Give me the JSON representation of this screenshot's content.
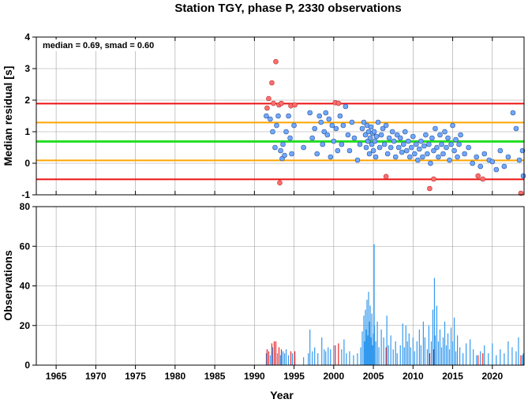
{
  "title": "Station TGY, phase P, 2330 observations",
  "colors": {
    "median_line": "#22dd22",
    "smad_line": "#ffa500",
    "outlier_line": "#ee1111",
    "normal_point": "#6fa8ff",
    "outlier_point": "#ff6e6e",
    "bar_normal": "#3399ee",
    "bar_outlier": "#ee2222"
  },
  "chart_data": [
    {
      "type": "scatter",
      "name": "residuals",
      "ylabel": "Median residual [s]",
      "annotation": "median = 0.69, smad = 0.60",
      "xlim": [
        1962.5,
        2024
      ],
      "ylim": [
        -1,
        4
      ],
      "yticks": [
        -1,
        0,
        1,
        2,
        3,
        4
      ],
      "xticks": [
        1965,
        1970,
        1975,
        1980,
        1985,
        1990,
        1995,
        2000,
        2005,
        2010,
        2015,
        2020
      ],
      "grid": true,
      "hlines": [
        {
          "value": 0.69,
          "kind": "median"
        },
        {
          "value": 0.09,
          "kind": "smad"
        },
        {
          "value": 1.29,
          "kind": "smad"
        },
        {
          "value": -0.51,
          "kind": "outlier"
        },
        {
          "value": 1.89,
          "kind": "outlier"
        }
      ],
      "outliers": [
        [
          1991.6,
          1.75
        ],
        [
          1991.8,
          2.05
        ],
        [
          1992.2,
          2.55
        ],
        [
          1992.7,
          3.22
        ],
        [
          1993.1,
          1.85
        ],
        [
          1993.4,
          1.9
        ],
        [
          1993.2,
          -0.62
        ],
        [
          1992.4,
          1.9
        ],
        [
          1994.6,
          1.82
        ],
        [
          1995.1,
          1.85
        ],
        [
          2000.2,
          1.92
        ],
        [
          2000.6,
          1.9
        ],
        [
          2006.6,
          -0.42
        ],
        [
          2012.1,
          -0.8
        ],
        [
          2012.6,
          -0.5
        ],
        [
          2018.2,
          -0.4
        ],
        [
          2018.8,
          -0.5
        ],
        [
          2023.6,
          -0.95
        ]
      ],
      "points": [
        [
          1991.5,
          1.5
        ],
        [
          1992.0,
          1.4
        ],
        [
          1992.3,
          1.0
        ],
        [
          1992.6,
          0.5
        ],
        [
          1992.8,
          1.2
        ],
        [
          1993.0,
          1.5
        ],
        [
          1993.3,
          0.4
        ],
        [
          1993.5,
          0.15
        ],
        [
          1993.6,
          0.6
        ],
        [
          1993.8,
          0.25
        ],
        [
          1994.0,
          1.0
        ],
        [
          1994.3,
          1.5
        ],
        [
          1994.5,
          0.8
        ],
        [
          1994.7,
          0.3
        ],
        [
          1995.0,
          1.2
        ],
        [
          1996.2,
          0.5
        ],
        [
          1997.0,
          1.6
        ],
        [
          1997.3,
          0.8
        ],
        [
          1997.6,
          1.1
        ],
        [
          1997.9,
          0.3
        ],
        [
          1998.2,
          1.5
        ],
        [
          1998.4,
          1.3
        ],
        [
          1998.6,
          0.6
        ],
        [
          1998.8,
          1.0
        ],
        [
          1999.0,
          1.6
        ],
        [
          1999.2,
          0.9
        ],
        [
          1999.4,
          1.4
        ],
        [
          1999.6,
          0.2
        ],
        [
          1999.8,
          1.2
        ],
        [
          2000.0,
          0.7
        ],
        [
          2000.3,
          1.1
        ],
        [
          2000.5,
          0.4
        ],
        [
          2000.8,
          1.5
        ],
        [
          2001.0,
          0.6
        ],
        [
          2001.2,
          1.2
        ],
        [
          2001.5,
          1.8
        ],
        [
          2001.8,
          0.9
        ],
        [
          2002.0,
          0.4
        ],
        [
          2002.3,
          1.3
        ],
        [
          2002.6,
          0.8
        ],
        [
          2003.0,
          0.1
        ],
        [
          2003.3,
          0.6
        ],
        [
          2003.6,
          1.1
        ],
        [
          2003.8,
          1.3
        ],
        [
          2004.0,
          0.9
        ],
        [
          2004.1,
          0.5
        ],
        [
          2004.2,
          1.2
        ],
        [
          2004.3,
          0.7
        ],
        [
          2004.4,
          1.0
        ],
        [
          2004.5,
          0.3
        ],
        [
          2004.6,
          0.8
        ],
        [
          2004.7,
          1.15
        ],
        [
          2004.8,
          0.6
        ],
        [
          2004.9,
          0.95
        ],
        [
          2005.0,
          0.4
        ],
        [
          2005.1,
          1.0
        ],
        [
          2005.2,
          0.7
        ],
        [
          2005.3,
          0.2
        ],
        [
          2005.4,
          0.85
        ],
        [
          2005.6,
          1.3
        ],
        [
          2005.8,
          0.5
        ],
        [
          2006.0,
          0.9
        ],
        [
          2006.2,
          1.1
        ],
        [
          2006.4,
          0.6
        ],
        [
          2006.6,
          1.2
        ],
        [
          2006.8,
          0.3
        ],
        [
          2007.0,
          0.8
        ],
        [
          2007.2,
          0.5
        ],
        [
          2007.4,
          1.0
        ],
        [
          2007.6,
          0.7
        ],
        [
          2007.8,
          0.2
        ],
        [
          2008.0,
          0.9
        ],
        [
          2008.2,
          0.5
        ],
        [
          2008.4,
          0.8
        ],
        [
          2008.6,
          0.35
        ],
        [
          2008.8,
          0.6
        ],
        [
          2009.0,
          1.0
        ],
        [
          2009.2,
          0.4
        ],
        [
          2009.4,
          0.7
        ],
        [
          2009.6,
          0.2
        ],
        [
          2009.8,
          0.5
        ],
        [
          2010.0,
          0.85
        ],
        [
          2010.2,
          0.3
        ],
        [
          2010.4,
          0.6
        ],
        [
          2010.6,
          0.1
        ],
        [
          2010.8,
          0.45
        ],
        [
          2011.0,
          0.7
        ],
        [
          2011.2,
          0.2
        ],
        [
          2011.4,
          0.55
        ],
        [
          2011.6,
          0.9
        ],
        [
          2011.8,
          0.3
        ],
        [
          2012.0,
          0.6
        ],
        [
          2012.2,
          0.0
        ],
        [
          2012.4,
          0.8
        ],
        [
          2012.6,
          0.4
        ],
        [
          2012.8,
          1.1
        ],
        [
          2013.0,
          0.5
        ],
        [
          2013.2,
          0.2
        ],
        [
          2013.4,
          0.9
        ],
        [
          2013.6,
          0.6
        ],
        [
          2013.8,
          0.3
        ],
        [
          2014.0,
          1.0
        ],
        [
          2014.2,
          0.5
        ],
        [
          2014.4,
          0.8
        ],
        [
          2014.6,
          0.1
        ],
        [
          2014.8,
          0.6
        ],
        [
          2015.0,
          1.2
        ],
        [
          2015.2,
          0.4
        ],
        [
          2015.4,
          0.75
        ],
        [
          2015.6,
          0.2
        ],
        [
          2015.8,
          0.6
        ],
        [
          2016.0,
          0.9
        ],
        [
          2016.5,
          0.3
        ],
        [
          2017.0,
          0.5
        ],
        [
          2017.5,
          0.0
        ],
        [
          2018.0,
          0.2
        ],
        [
          2018.5,
          -0.1
        ],
        [
          2019.0,
          0.3
        ],
        [
          2019.6,
          0.1
        ],
        [
          2020.0,
          0.05
        ],
        [
          2020.5,
          -0.2
        ],
        [
          2021.0,
          0.4
        ],
        [
          2021.5,
          -0.1
        ],
        [
          2022.0,
          0.2
        ],
        [
          2022.6,
          1.6
        ],
        [
          2023.0,
          1.1
        ],
        [
          2023.4,
          0.1
        ],
        [
          2023.8,
          0.4
        ],
        [
          2024.0,
          -0.4
        ]
      ]
    },
    {
      "type": "bar",
      "name": "observations",
      "ylabel": "Observations",
      "xlabel": "Year",
      "xlim": [
        1962.5,
        2024
      ],
      "ylim": [
        0,
        80
      ],
      "yticks": [
        0,
        20,
        40,
        60,
        80
      ],
      "xticks": [
        1965,
        1970,
        1975,
        1980,
        1985,
        1990,
        1995,
        2000,
        2005,
        2010,
        2015,
        2020
      ],
      "grid": true,
      "outlier_bars": [
        [
          1991.6,
          8
        ],
        [
          1991.8,
          7
        ],
        [
          1992.2,
          11
        ],
        [
          1992.5,
          12
        ],
        [
          1992.7,
          12
        ],
        [
          1993.1,
          9
        ],
        [
          1993.4,
          8
        ],
        [
          1994.6,
          7
        ],
        [
          1995.1,
          7
        ],
        [
          2000.2,
          10
        ],
        [
          2000.6,
          11
        ],
        [
          2006.6,
          9
        ],
        [
          2012.1,
          6
        ],
        [
          2012.6,
          8
        ],
        [
          2018.2,
          5
        ],
        [
          2018.8,
          6
        ],
        [
          2023.6,
          5
        ]
      ],
      "bars": [
        [
          1991.5,
          6
        ],
        [
          1992.0,
          5
        ],
        [
          1992.3,
          9
        ],
        [
          1992.9,
          6
        ],
        [
          1993.3,
          5
        ],
        [
          1993.6,
          7
        ],
        [
          1993.8,
          6
        ],
        [
          1994.0,
          8
        ],
        [
          1994.3,
          5
        ],
        [
          1994.8,
          6
        ],
        [
          1996.2,
          4
        ],
        [
          1996.8,
          6
        ],
        [
          1997.0,
          18
        ],
        [
          1997.3,
          7
        ],
        [
          1997.6,
          9
        ],
        [
          1998.0,
          6
        ],
        [
          1998.5,
          14
        ],
        [
          1998.8,
          8
        ],
        [
          1999.0,
          7
        ],
        [
          1999.3,
          9
        ],
        [
          1999.6,
          8
        ],
        [
          2000.0,
          10
        ],
        [
          2001.0,
          8
        ],
        [
          2001.3,
          13
        ],
        [
          2001.6,
          6
        ],
        [
          2002.0,
          7
        ],
        [
          2002.5,
          5
        ],
        [
          2003.0,
          6
        ],
        [
          2003.4,
          9
        ],
        [
          2003.6,
          17
        ],
        [
          2003.8,
          25
        ],
        [
          2003.9,
          12
        ],
        [
          2004.0,
          28
        ],
        [
          2004.1,
          18
        ],
        [
          2004.2,
          33
        ],
        [
          2004.3,
          15
        ],
        [
          2004.4,
          37
        ],
        [
          2004.5,
          22
        ],
        [
          2004.6,
          30
        ],
        [
          2004.7,
          14
        ],
        [
          2004.8,
          26
        ],
        [
          2004.9,
          10
        ],
        [
          2005.0,
          16
        ],
        [
          2005.1,
          61
        ],
        [
          2005.15,
          20
        ],
        [
          2005.3,
          12
        ],
        [
          2005.5,
          22
        ],
        [
          2005.7,
          9
        ],
        [
          2006.0,
          18
        ],
        [
          2006.3,
          14
        ],
        [
          2006.7,
          25
        ],
        [
          2006.9,
          10
        ],
        [
          2007.2,
          15
        ],
        [
          2007.5,
          8
        ],
        [
          2007.8,
          12
        ],
        [
          2008.0,
          6
        ],
        [
          2008.4,
          10
        ],
        [
          2008.7,
          21
        ],
        [
          2008.9,
          9
        ],
        [
          2009.1,
          20
        ],
        [
          2009.3,
          12
        ],
        [
          2009.5,
          16
        ],
        [
          2009.7,
          9
        ],
        [
          2010.0,
          14
        ],
        [
          2010.2,
          7
        ],
        [
          2010.5,
          12
        ],
        [
          2010.8,
          18
        ],
        [
          2011.0,
          10
        ],
        [
          2011.3,
          22
        ],
        [
          2011.5,
          14
        ],
        [
          2011.8,
          8
        ],
        [
          2012.0,
          20
        ],
        [
          2012.3,
          12
        ],
        [
          2012.5,
          28
        ],
        [
          2012.7,
          44
        ],
        [
          2012.8,
          15
        ],
        [
          2013.0,
          30
        ],
        [
          2013.2,
          12
        ],
        [
          2013.4,
          18
        ],
        [
          2013.6,
          9
        ],
        [
          2013.8,
          14
        ],
        [
          2014.0,
          22
        ],
        [
          2014.2,
          10
        ],
        [
          2014.4,
          16
        ],
        [
          2014.6,
          8
        ],
        [
          2014.8,
          19
        ],
        [
          2015.0,
          12
        ],
        [
          2015.2,
          24
        ],
        [
          2015.4,
          7
        ],
        [
          2015.6,
          15
        ],
        [
          2015.9,
          9
        ],
        [
          2016.3,
          6
        ],
        [
          2016.7,
          11
        ],
        [
          2017.2,
          13
        ],
        [
          2017.6,
          8
        ],
        [
          2018.0,
          5
        ],
        [
          2018.5,
          7
        ],
        [
          2019.0,
          10
        ],
        [
          2019.5,
          6
        ],
        [
          2020.0,
          11
        ],
        [
          2020.5,
          5
        ],
        [
          2021.0,
          8
        ],
        [
          2021.5,
          6
        ],
        [
          2022.0,
          12
        ],
        [
          2022.5,
          9
        ],
        [
          2023.0,
          7
        ],
        [
          2023.3,
          14
        ],
        [
          2023.8,
          5
        ],
        [
          2024.0,
          6
        ]
      ]
    }
  ]
}
